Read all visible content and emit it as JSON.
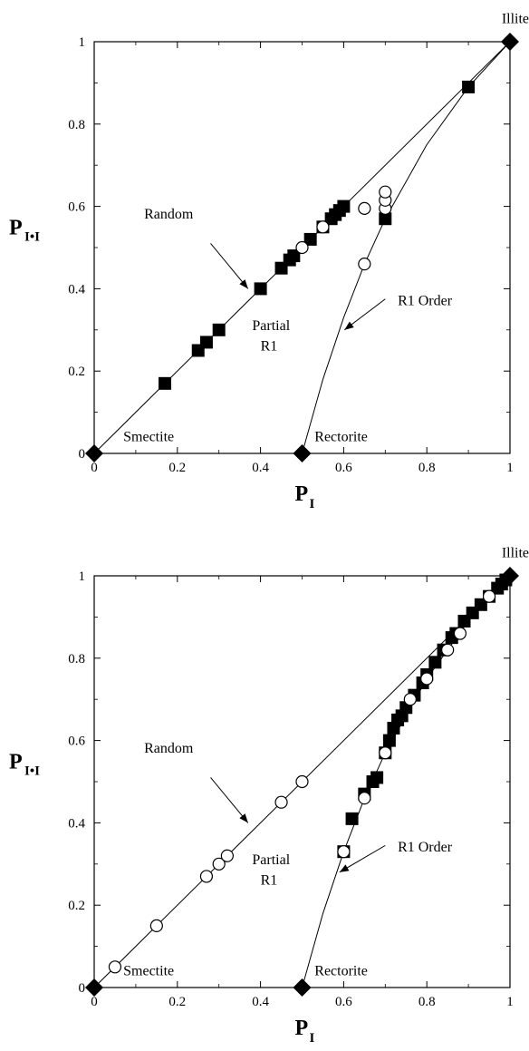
{
  "chart_data": [
    {
      "type": "scatter",
      "title": "",
      "xlabel": "P",
      "xlabel_sub": "I",
      "ylabel": "P",
      "ylabel_sub": "I•I",
      "xlim": [
        0,
        1
      ],
      "ylim": [
        0,
        1
      ],
      "xticks": [
        "0",
        "0.2",
        "0.4",
        "0.6",
        "0.8",
        "1"
      ],
      "yticks": [
        "0",
        "0.2",
        "0.4",
        "0.6",
        "0.8",
        "1"
      ],
      "grid": false,
      "lines": [
        {
          "name": "Random",
          "points": [
            [
              0,
              0
            ],
            [
              1,
              1
            ]
          ]
        },
        {
          "name": "R1 Order",
          "points": [
            [
              0.5,
              0
            ],
            [
              0.55,
              0.18
            ],
            [
              0.6,
              0.33
            ],
            [
              0.65,
              0.46
            ],
            [
              0.7,
              0.57
            ],
            [
              0.8,
              0.75
            ],
            [
              0.9,
              0.89
            ],
            [
              1,
              1
            ]
          ]
        }
      ],
      "series": [
        {
          "marker": "filled-square",
          "points": [
            [
              0.17,
              0.17
            ],
            [
              0.25,
              0.25
            ],
            [
              0.27,
              0.27
            ],
            [
              0.3,
              0.3
            ],
            [
              0.4,
              0.4
            ],
            [
              0.45,
              0.45
            ],
            [
              0.47,
              0.47
            ],
            [
              0.48,
              0.48
            ],
            [
              0.52,
              0.52
            ],
            [
              0.55,
              0.55
            ],
            [
              0.57,
              0.57
            ],
            [
              0.58,
              0.58
            ],
            [
              0.59,
              0.59
            ],
            [
              0.6,
              0.6
            ],
            [
              0.7,
              0.57
            ],
            [
              0.9,
              0.89
            ]
          ]
        },
        {
          "marker": "open-circle",
          "points": [
            [
              0.5,
              0.5
            ],
            [
              0.55,
              0.55
            ],
            [
              0.65,
              0.595
            ],
            [
              0.65,
              0.46
            ],
            [
              0.7,
              0.595
            ],
            [
              0.7,
              0.615
            ],
            [
              0.7,
              0.635
            ]
          ]
        },
        {
          "marker": "filled-diamond",
          "points": [
            [
              0,
              0
            ],
            [
              0.5,
              0
            ],
            [
              1,
              1
            ]
          ]
        }
      ],
      "annotations": [
        {
          "text": "Illite",
          "x": 0.98,
          "y": 1.045
        },
        {
          "text": "Random",
          "x": 0.12,
          "y": 0.57
        },
        {
          "text": "Partial",
          "x": 0.38,
          "y": 0.3
        },
        {
          "text": "R1",
          "x": 0.4,
          "y": 0.25
        },
        {
          "text": "R1  Order",
          "x": 0.73,
          "y": 0.36
        },
        {
          "text": "Smectite",
          "x": 0.07,
          "y": 0.03
        },
        {
          "text": "Rectorite",
          "x": 0.53,
          "y": 0.03
        }
      ]
    },
    {
      "type": "scatter",
      "title": "",
      "xlabel": "P",
      "xlabel_sub": "I",
      "ylabel": "P",
      "ylabel_sub": "I•I",
      "xlim": [
        0,
        1
      ],
      "ylim": [
        0,
        1
      ],
      "xticks": [
        "0",
        "0.2",
        "0.4",
        "0.6",
        "0.8",
        "1"
      ],
      "yticks": [
        "0",
        "0.2",
        "0.4",
        "0.6",
        "0.8",
        "1"
      ],
      "grid": false,
      "lines": [
        {
          "name": "Random",
          "points": [
            [
              0,
              0
            ],
            [
              1,
              1
            ]
          ]
        },
        {
          "name": "R1 Order",
          "points": [
            [
              0.5,
              0
            ],
            [
              0.55,
              0.18
            ],
            [
              0.6,
              0.33
            ],
            [
              0.65,
              0.46
            ],
            [
              0.7,
              0.57
            ],
            [
              0.8,
              0.75
            ],
            [
              0.9,
              0.89
            ],
            [
              1,
              1
            ]
          ]
        }
      ],
      "series": [
        {
          "marker": "filled-square",
          "points": [
            [
              0.6,
              0.33
            ],
            [
              0.62,
              0.41
            ],
            [
              0.65,
              0.47
            ],
            [
              0.67,
              0.5
            ],
            [
              0.68,
              0.51
            ],
            [
              0.7,
              0.57
            ],
            [
              0.71,
              0.6
            ],
            [
              0.72,
              0.63
            ],
            [
              0.73,
              0.65
            ],
            [
              0.74,
              0.66
            ],
            [
              0.75,
              0.68
            ],
            [
              0.77,
              0.71
            ],
            [
              0.79,
              0.74
            ],
            [
              0.8,
              0.76
            ],
            [
              0.82,
              0.79
            ],
            [
              0.84,
              0.82
            ],
            [
              0.86,
              0.85
            ],
            [
              0.87,
              0.86
            ],
            [
              0.89,
              0.89
            ],
            [
              0.91,
              0.91
            ],
            [
              0.93,
              0.93
            ],
            [
              0.95,
              0.95
            ],
            [
              0.97,
              0.97
            ],
            [
              0.98,
              0.98
            ],
            [
              0.99,
              0.99
            ]
          ]
        },
        {
          "marker": "open-circle",
          "points": [
            [
              0.05,
              0.05
            ],
            [
              0.15,
              0.15
            ],
            [
              0.27,
              0.27
            ],
            [
              0.3,
              0.3
            ],
            [
              0.32,
              0.32
            ],
            [
              0.45,
              0.45
            ],
            [
              0.5,
              0.5
            ],
            [
              0.6,
              0.33
            ],
            [
              0.65,
              0.46
            ],
            [
              0.7,
              0.57
            ],
            [
              0.76,
              0.7
            ],
            [
              0.8,
              0.75
            ],
            [
              0.85,
              0.82
            ],
            [
              0.88,
              0.86
            ],
            [
              0.95,
              0.95
            ]
          ]
        },
        {
          "marker": "filled-diamond",
          "points": [
            [
              0,
              0
            ],
            [
              0.5,
              0
            ],
            [
              1,
              1
            ]
          ]
        }
      ],
      "annotations": [
        {
          "text": "Illite",
          "x": 0.98,
          "y": 1.045
        },
        {
          "text": "Random",
          "x": 0.12,
          "y": 0.57
        },
        {
          "text": "Partial",
          "x": 0.38,
          "y": 0.3
        },
        {
          "text": "R1",
          "x": 0.4,
          "y": 0.25
        },
        {
          "text": "R1  Order",
          "x": 0.73,
          "y": 0.33
        },
        {
          "text": "Smectite",
          "x": 0.07,
          "y": 0.03
        },
        {
          "text": "Rectorite",
          "x": 0.53,
          "y": 0.03
        }
      ]
    }
  ]
}
